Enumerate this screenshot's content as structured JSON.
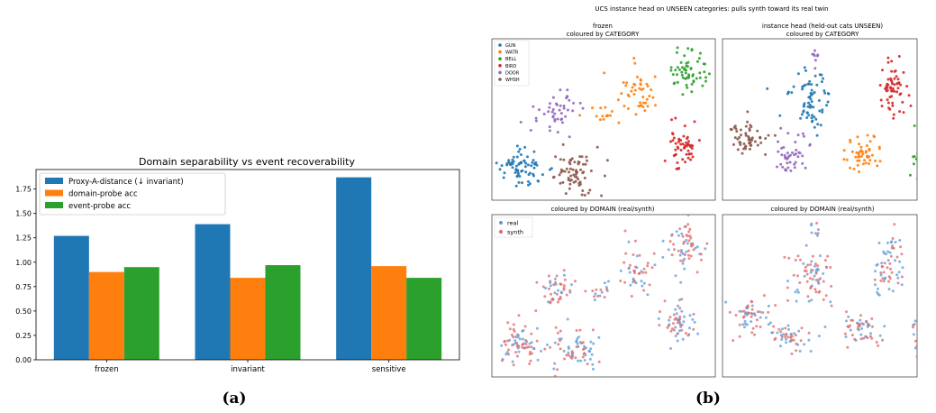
{
  "panel_labels": {
    "a": "(a)",
    "b": "(b)"
  },
  "colors": {
    "blue": "#1f77b4",
    "orange": "#ff7f0e",
    "green": "#2ca02c",
    "red": "#d62728",
    "purple": "#9467bd",
    "brown": "#8c564b",
    "real": "#5b9bd5",
    "synth": "#e06666"
  },
  "chart_data": [
    {
      "type": "bar",
      "title": "Domain separability vs event recoverability",
      "categories": [
        "frozen",
        "invariant",
        "sensitive"
      ],
      "series": [
        {
          "name": "Proxy-A-distance (↓ invariant)",
          "values": [
            1.27,
            1.39,
            1.87
          ]
        },
        {
          "name": "domain-probe acc",
          "values": [
            0.9,
            0.84,
            0.96
          ]
        },
        {
          "name": "event-probe acc",
          "values": [
            0.95,
            0.97,
            0.84
          ]
        }
      ],
      "ylim": [
        0,
        1.95
      ],
      "yticks": [
        "0.00",
        "0.25",
        "0.50",
        "0.75",
        "1.00",
        "1.25",
        "1.50",
        "1.75"
      ],
      "xlabel": "",
      "ylabel": "",
      "legend_position": "top-left"
    },
    {
      "type": "scatter",
      "suptitle": "UCS instance head on UNSEEN categories: pulls synth toward its real twin",
      "panels": [
        {
          "title_lines": [
            "frozen",
            "coloured by CATEGORY"
          ],
          "color_by": "category"
        },
        {
          "title_lines": [
            "instance head (held-out cats UNSEEN)",
            "coloured by CATEGORY"
          ],
          "color_by": "category"
        },
        {
          "title_lines": [
            "coloured by DOMAIN (real/synth)"
          ],
          "color_by": "domain"
        },
        {
          "title_lines": [
            "coloured by DOMAIN (real/synth)"
          ],
          "color_by": "domain"
        }
      ],
      "category_legend": [
        "GUN",
        "WATR",
        "BELL",
        "BIRD",
        "DOOR",
        "WHSH"
      ],
      "domain_legend": [
        "real",
        "synth"
      ]
    }
  ]
}
